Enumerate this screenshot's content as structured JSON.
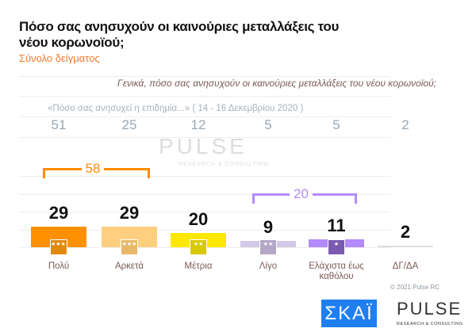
{
  "header": {
    "title": "Πόσο σας ανησυχούν οι καινούριες μεταλλάξεις του νέου κορωνοϊού;",
    "subtitle": "Σύνολο δείγματος"
  },
  "chart_data": {
    "type": "bar",
    "title": "Πόσο σας ανησυχούν οι καινούριες μεταλλάξεις του νέου κορωνοϊού;",
    "question": "Γενικά, πόσο σας ανησυχούν οι καινούριες μεταλλάξεις του νέου κορωνοϊού;",
    "categories": [
      "Πολύ",
      "Αρκετά",
      "Μέτρια",
      "Λίγο",
      "Ελάχιστα έως καθόλου",
      "ΔΓ/ΔΑ"
    ],
    "values": [
      29,
      29,
      20,
      9,
      11,
      2
    ],
    "colors": [
      "#ff9100",
      "#ffcf80",
      "#ffe800",
      "#d3c8e8",
      "#b38aff",
      "#dddddd"
    ],
    "previous_label": "«Πόσο σας ανησυχεί η επιδημία...» ( 14 - 16  Δεκεμβρίου  2020 )",
    "previous_values": [
      51,
      25,
      12,
      5,
      5,
      2
    ],
    "groups": [
      {
        "label": "58",
        "color": "#ff8c00",
        "from": 0,
        "to": 1
      },
      {
        "label": "20",
        "color": "#b38aff",
        "from": 3,
        "to": 4
      }
    ]
  },
  "badges": [
    "★★★★",
    "★★★",
    "★★",
    "★★",
    "★",
    ""
  ],
  "badge_colors": [
    "#e08a10",
    "#e8b86a",
    "#d8c800",
    "#b4a8c8",
    "#7a5ab0",
    ""
  ],
  "footer": {
    "copyright": "© 2021 Pulse RC",
    "logo_skai": "ΣΚΑΪ",
    "logo_pulse": "PULSE",
    "logo_pulse_sub": "RESEARCH & CONSULTING"
  }
}
